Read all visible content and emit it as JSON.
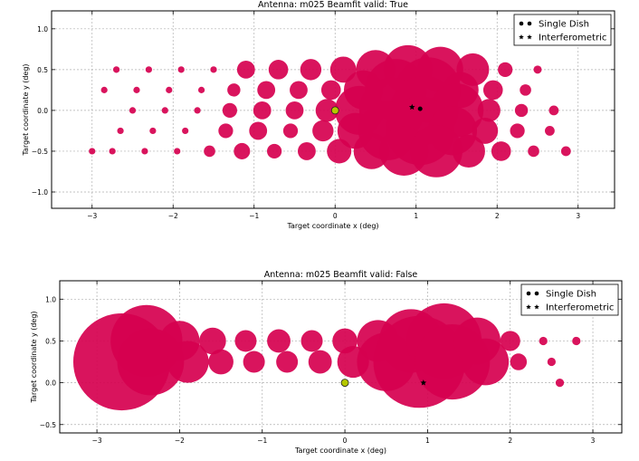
{
  "chart_data": [
    {
      "type": "scatter",
      "title": "Antenna: m025 Beamfit valid: True",
      "xlabel": "Target coordinate x (deg)",
      "ylabel": "Target coordinate y (deg)",
      "xlim": [
        -3.5,
        3.45
      ],
      "ylim": [
        -1.2,
        1.22
      ],
      "xticks": [
        -3,
        -2,
        -1,
        0,
        1,
        2,
        3
      ],
      "xtick_labels": [
        "−3",
        "−2",
        "−1",
        "0",
        "1",
        "2",
        "3"
      ],
      "yticks": [
        -1.0,
        -0.5,
        0.0,
        0.5,
        1.0
      ],
      "ytick_labels": [
        "−1.0",
        "−0.5",
        "0.0",
        "0.5",
        "1.0"
      ],
      "grid": true,
      "legend": {
        "placement": "top-right",
        "entries": [
          {
            "label": "Single Dish",
            "marker": "dot"
          },
          {
            "label": "Interferometric",
            "marker": "star"
          }
        ]
      },
      "colors": {
        "bubble": "#d6004f",
        "center": "#b5c800",
        "marker": "#000000"
      },
      "single_dish_point": {
        "x": 1.05,
        "y": 0.02
      },
      "interferometric_point": {
        "x": 0.95,
        "y": 0.04
      },
      "center_point": {
        "x": 0.0,
        "y": 0.0
      },
      "points": [
        {
          "x": -2.7,
          "y": 0.5,
          "r": 0.04
        },
        {
          "x": -2.3,
          "y": 0.5,
          "r": 0.04
        },
        {
          "x": -1.9,
          "y": 0.5,
          "r": 0.04
        },
        {
          "x": -1.5,
          "y": 0.5,
          "r": 0.04
        },
        {
          "x": -1.1,
          "y": 0.5,
          "r": 0.11
        },
        {
          "x": -0.7,
          "y": 0.5,
          "r": 0.12
        },
        {
          "x": -0.3,
          "y": 0.5,
          "r": 0.13
        },
        {
          "x": 0.1,
          "y": 0.5,
          "r": 0.16
        },
        {
          "x": 0.5,
          "y": 0.5,
          "r": 0.24
        },
        {
          "x": 0.9,
          "y": 0.5,
          "r": 0.3
        },
        {
          "x": 1.3,
          "y": 0.5,
          "r": 0.28
        },
        {
          "x": 1.7,
          "y": 0.5,
          "r": 0.2
        },
        {
          "x": 2.1,
          "y": 0.5,
          "r": 0.09
        },
        {
          "x": 2.5,
          "y": 0.5,
          "r": 0.05
        },
        {
          "x": -2.85,
          "y": 0.25,
          "r": 0.04
        },
        {
          "x": -2.45,
          "y": 0.25,
          "r": 0.04
        },
        {
          "x": -2.05,
          "y": 0.25,
          "r": 0.04
        },
        {
          "x": -1.65,
          "y": 0.25,
          "r": 0.04
        },
        {
          "x": -1.25,
          "y": 0.25,
          "r": 0.08
        },
        {
          "x": -0.85,
          "y": 0.25,
          "r": 0.11
        },
        {
          "x": -0.45,
          "y": 0.25,
          "r": 0.11
        },
        {
          "x": -0.05,
          "y": 0.25,
          "r": 0.12
        },
        {
          "x": 0.35,
          "y": 0.25,
          "r": 0.24
        },
        {
          "x": 0.75,
          "y": 0.25,
          "r": 0.38
        },
        {
          "x": 1.15,
          "y": 0.25,
          "r": 0.4
        },
        {
          "x": 1.55,
          "y": 0.25,
          "r": 0.22
        },
        {
          "x": 1.95,
          "y": 0.25,
          "r": 0.12
        },
        {
          "x": 2.35,
          "y": 0.25,
          "r": 0.07
        },
        {
          "x": -2.5,
          "y": 0.0,
          "r": 0.04
        },
        {
          "x": -2.1,
          "y": 0.0,
          "r": 0.04
        },
        {
          "x": -1.7,
          "y": 0.0,
          "r": 0.04
        },
        {
          "x": -1.3,
          "y": 0.0,
          "r": 0.09
        },
        {
          "x": -0.9,
          "y": 0.0,
          "r": 0.11
        },
        {
          "x": -0.5,
          "y": 0.0,
          "r": 0.11
        },
        {
          "x": -0.1,
          "y": 0.0,
          "r": 0.14
        },
        {
          "x": 0.3,
          "y": 0.0,
          "r": 0.3
        },
        {
          "x": 0.7,
          "y": 0.0,
          "r": 0.4
        },
        {
          "x": 1.1,
          "y": 0.0,
          "r": 0.42
        },
        {
          "x": 1.5,
          "y": 0.0,
          "r": 0.33
        },
        {
          "x": 1.9,
          "y": 0.0,
          "r": 0.14
        },
        {
          "x": 2.3,
          "y": 0.0,
          "r": 0.08
        },
        {
          "x": 2.7,
          "y": 0.0,
          "r": 0.06
        },
        {
          "x": -2.65,
          "y": -0.25,
          "r": 0.04
        },
        {
          "x": -2.25,
          "y": -0.25,
          "r": 0.04
        },
        {
          "x": -1.85,
          "y": -0.25,
          "r": 0.04
        },
        {
          "x": -1.35,
          "y": -0.25,
          "r": 0.09
        },
        {
          "x": -0.95,
          "y": -0.25,
          "r": 0.11
        },
        {
          "x": -0.55,
          "y": -0.25,
          "r": 0.09
        },
        {
          "x": -0.15,
          "y": -0.25,
          "r": 0.13
        },
        {
          "x": 0.25,
          "y": -0.25,
          "r": 0.22
        },
        {
          "x": 0.65,
          "y": -0.25,
          "r": 0.36
        },
        {
          "x": 1.05,
          "y": -0.25,
          "r": 0.42
        },
        {
          "x": 1.45,
          "y": -0.25,
          "r": 0.3
        },
        {
          "x": 1.85,
          "y": -0.25,
          "r": 0.16
        },
        {
          "x": 2.25,
          "y": -0.25,
          "r": 0.09
        },
        {
          "x": 2.65,
          "y": -0.25,
          "r": 0.06
        },
        {
          "x": -3.0,
          "y": -0.5,
          "r": 0.04
        },
        {
          "x": -2.75,
          "y": -0.5,
          "r": 0.04
        },
        {
          "x": -2.35,
          "y": -0.5,
          "r": 0.04
        },
        {
          "x": -1.95,
          "y": -0.5,
          "r": 0.04
        },
        {
          "x": -1.55,
          "y": -0.5,
          "r": 0.07
        },
        {
          "x": -1.15,
          "y": -0.5,
          "r": 0.1
        },
        {
          "x": -0.75,
          "y": -0.5,
          "r": 0.09
        },
        {
          "x": -0.35,
          "y": -0.5,
          "r": 0.11
        },
        {
          "x": 0.05,
          "y": -0.5,
          "r": 0.15
        },
        {
          "x": 0.45,
          "y": -0.5,
          "r": 0.22
        },
        {
          "x": 0.85,
          "y": -0.5,
          "r": 0.3
        },
        {
          "x": 1.25,
          "y": -0.5,
          "r": 0.32
        },
        {
          "x": 1.65,
          "y": -0.5,
          "r": 0.2
        },
        {
          "x": 2.05,
          "y": -0.5,
          "r": 0.12
        },
        {
          "x": 2.45,
          "y": -0.5,
          "r": 0.07
        },
        {
          "x": 2.85,
          "y": -0.5,
          "r": 0.06
        }
      ]
    },
    {
      "type": "scatter",
      "title": "Antenna: m025 Beamfit valid: False",
      "xlabel": "Target coordinate x (deg)",
      "ylabel": "Target coordinate y (deg)",
      "xlim": [
        -3.45,
        3.35
      ],
      "ylim": [
        -0.6,
        1.22
      ],
      "xticks": [
        -3,
        -2,
        -1,
        0,
        1,
        2,
        3
      ],
      "xtick_labels": [
        "−3",
        "−2",
        "−1",
        "0",
        "1",
        "2",
        "3"
      ],
      "yticks": [
        -0.5,
        0.0,
        0.5,
        1.0
      ],
      "ytick_labels": [
        "−0.5",
        "0.0",
        "0.5",
        "1.0"
      ],
      "grid": true,
      "legend": {
        "placement": "top-right",
        "entries": [
          {
            "label": "Single Dish",
            "marker": "dot"
          },
          {
            "label": "Interferometric",
            "marker": "star"
          }
        ]
      },
      "colors": {
        "bubble": "#d6004f",
        "center": "#b5c800",
        "marker": "#000000"
      },
      "interferometric_point": {
        "x": 0.95,
        "y": 0.0
      },
      "center_point": {
        "x": 0.0,
        "y": 0.0
      },
      "points": [
        {
          "x": -2.7,
          "y": 0.25,
          "r": 0.58
        },
        {
          "x": -2.4,
          "y": 0.5,
          "r": 0.43
        },
        {
          "x": -2.35,
          "y": 0.25,
          "r": 0.4
        },
        {
          "x": -2.0,
          "y": 0.5,
          "r": 0.24
        },
        {
          "x": -1.9,
          "y": 0.25,
          "r": 0.25
        },
        {
          "x": -1.6,
          "y": 0.5,
          "r": 0.16
        },
        {
          "x": -1.5,
          "y": 0.25,
          "r": 0.15
        },
        {
          "x": -1.2,
          "y": 0.5,
          "r": 0.13
        },
        {
          "x": -1.1,
          "y": 0.25,
          "r": 0.13
        },
        {
          "x": -0.8,
          "y": 0.5,
          "r": 0.14
        },
        {
          "x": -0.7,
          "y": 0.25,
          "r": 0.13
        },
        {
          "x": -0.4,
          "y": 0.5,
          "r": 0.13
        },
        {
          "x": -0.3,
          "y": 0.25,
          "r": 0.14
        },
        {
          "x": 0.0,
          "y": 0.5,
          "r": 0.15
        },
        {
          "x": 0.1,
          "y": 0.25,
          "r": 0.19
        },
        {
          "x": 0.4,
          "y": 0.5,
          "r": 0.25
        },
        {
          "x": 0.5,
          "y": 0.25,
          "r": 0.35
        },
        {
          "x": 0.8,
          "y": 0.5,
          "r": 0.38
        },
        {
          "x": 0.9,
          "y": 0.25,
          "r": 0.55
        },
        {
          "x": 1.2,
          "y": 0.5,
          "r": 0.45
        },
        {
          "x": 1.3,
          "y": 0.25,
          "r": 0.45
        },
        {
          "x": 1.6,
          "y": 0.5,
          "r": 0.28
        },
        {
          "x": 1.7,
          "y": 0.25,
          "r": 0.28
        },
        {
          "x": 2.0,
          "y": 0.5,
          "r": 0.12
        },
        {
          "x": 2.1,
          "y": 0.25,
          "r": 0.1
        },
        {
          "x": 2.4,
          "y": 0.5,
          "r": 0.05
        },
        {
          "x": 2.5,
          "y": 0.25,
          "r": 0.05
        },
        {
          "x": 2.6,
          "y": 0.0,
          "r": 0.05
        },
        {
          "x": 2.8,
          "y": 0.5,
          "r": 0.05
        }
      ]
    }
  ]
}
